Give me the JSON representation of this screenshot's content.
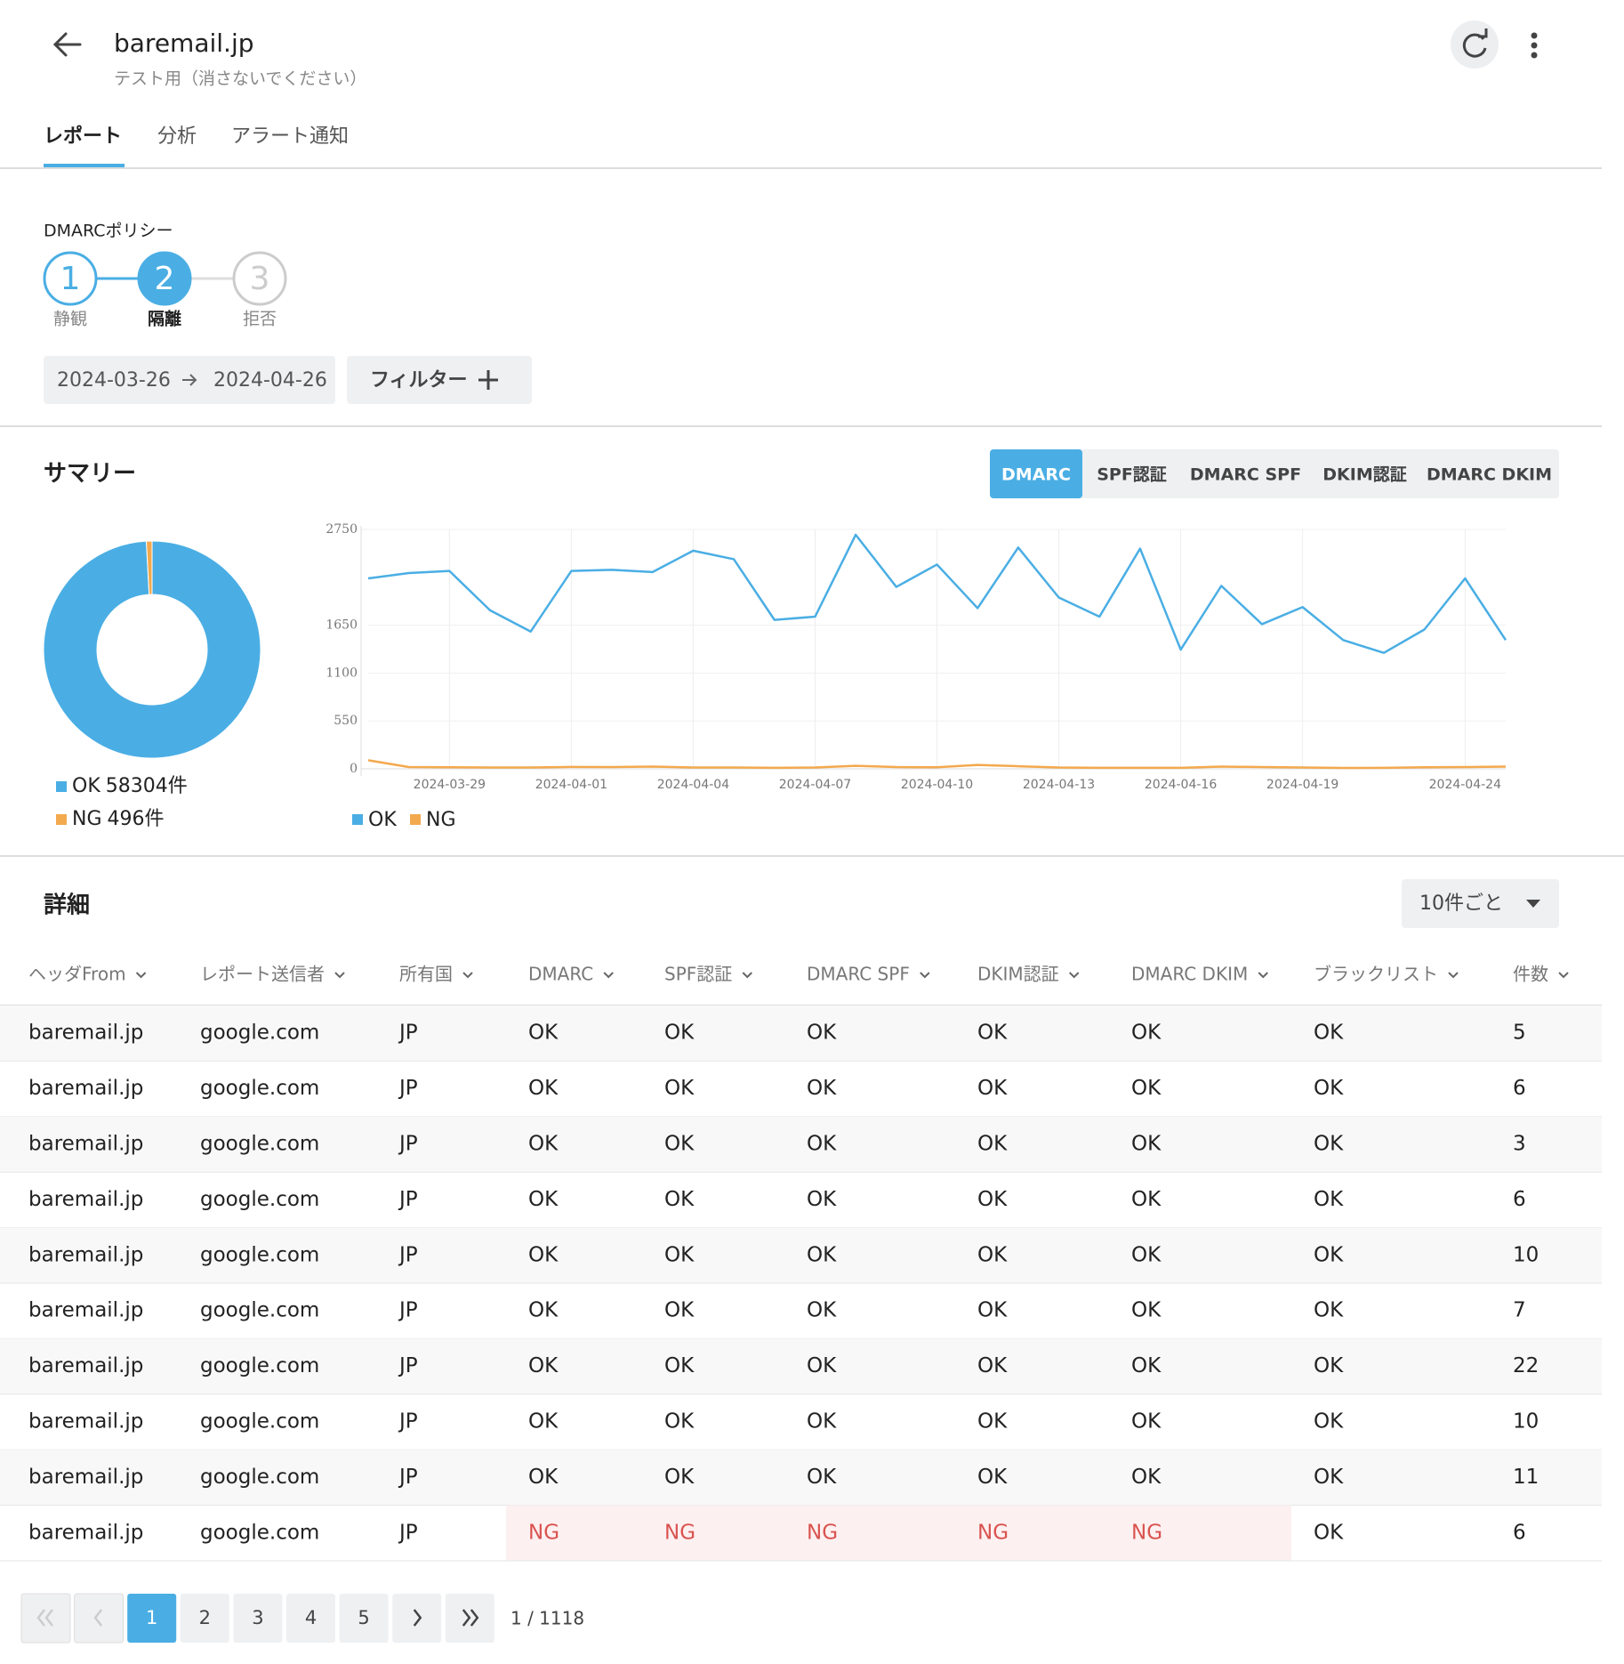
{
  "header": {
    "title": "baremail.jp",
    "subtitle": "テスト用（消さないでください）"
  },
  "tabs": [
    "レポート",
    "分析",
    "アラート通知"
  ],
  "policy": {
    "label": "DMARCポリシー",
    "steps": [
      {
        "number": "1",
        "label": "静観"
      },
      {
        "number": "2",
        "label": "隔離"
      },
      {
        "number": "3",
        "label": "拒否"
      }
    ]
  },
  "date_range": {
    "start": "2024-03-26",
    "end": "2024-04-26"
  },
  "filter_button": "フィルター",
  "summary": {
    "title": "サマリー",
    "metric_tabs": [
      "DMARC",
      "SPF認証",
      "DMARC SPF",
      "DKIM認証",
      "DMARC DKIM"
    ]
  },
  "chart_data": [
    {
      "type": "donut",
      "categories": [
        "OK",
        "NG"
      ],
      "values": [
        58304,
        496
      ],
      "value_labels": [
        "58304件",
        "496件"
      ],
      "colors": [
        "#4aaee4",
        "#f3a94e"
      ],
      "legend": "bottom"
    },
    {
      "type": "line",
      "x": [
        null,
        null,
        "2024-03-29",
        null,
        null,
        "2024-04-01",
        null,
        null,
        "2024-04-04",
        null,
        null,
        "2024-04-07",
        null,
        null,
        "2024-04-10",
        null,
        null,
        "2024-04-13",
        null,
        null,
        "2024-04-16",
        null,
        null,
        "2024-04-19",
        null,
        null,
        null,
        "2024-04-24",
        null
      ],
      "series": [
        {
          "name": "OK",
          "color": "#4aaee4",
          "values": [
            2188,
            2249,
            2273,
            1821,
            1577,
            2273,
            2286,
            2261,
            2506,
            2408,
            1711,
            1748,
            2689,
            2090,
            2347,
            1846,
            2542,
            1968,
            1748,
            2530,
            1369,
            2102,
            1662,
            1858,
            1479,
            1332,
            1601,
            2188,
            1479
          ]
        },
        {
          "name": "NG",
          "color": "#f3a94e",
          "values": [
            98,
            20,
            18,
            15,
            15,
            22,
            20,
            25,
            15,
            15,
            12,
            15,
            35,
            20,
            18,
            45,
            30,
            15,
            12,
            12,
            12,
            25,
            20,
            15,
            10,
            12,
            18,
            20,
            25
          ]
        }
      ],
      "ylim": [
        0,
        2750
      ],
      "yticks": [
        0,
        550,
        1100,
        1650,
        2750
      ],
      "grid": true,
      "legend": "bottom"
    }
  ],
  "details": {
    "title": "詳細",
    "page_size": "10件ごと",
    "table": {
      "columns": [
        "ヘッダFrom",
        "レポート送信者",
        "所有国",
        "DMARC",
        "SPF認証",
        "DMARC SPF",
        "DKIM認証",
        "DMARC DKIM",
        "ブラックリスト",
        "件数"
      ],
      "rows": [
        [
          "baremail.jp",
          "google.com",
          "JP",
          "OK",
          "OK",
          "OK",
          "OK",
          "OK",
          "OK",
          5
        ],
        [
          "baremail.jp",
          "google.com",
          "JP",
          "OK",
          "OK",
          "OK",
          "OK",
          "OK",
          "OK",
          6
        ],
        [
          "baremail.jp",
          "google.com",
          "JP",
          "OK",
          "OK",
          "OK",
          "OK",
          "OK",
          "OK",
          3
        ],
        [
          "baremail.jp",
          "google.com",
          "JP",
          "OK",
          "OK",
          "OK",
          "OK",
          "OK",
          "OK",
          6
        ],
        [
          "baremail.jp",
          "google.com",
          "JP",
          "OK",
          "OK",
          "OK",
          "OK",
          "OK",
          "OK",
          10
        ],
        [
          "baremail.jp",
          "google.com",
          "JP",
          "OK",
          "OK",
          "OK",
          "OK",
          "OK",
          "OK",
          7
        ],
        [
          "baremail.jp",
          "google.com",
          "JP",
          "OK",
          "OK",
          "OK",
          "OK",
          "OK",
          "OK",
          22
        ],
        [
          "baremail.jp",
          "google.com",
          "JP",
          "OK",
          "OK",
          "OK",
          "OK",
          "OK",
          "OK",
          10
        ],
        [
          "baremail.jp",
          "google.com",
          "JP",
          "OK",
          "OK",
          "OK",
          "OK",
          "OK",
          "OK",
          11
        ],
        [
          "baremail.jp",
          "google.com",
          "JP",
          "NG",
          "NG",
          "NG",
          "NG",
          "NG",
          "OK",
          6
        ]
      ]
    }
  },
  "pagination": {
    "pages": [
      1,
      2,
      3,
      4,
      5
    ],
    "status": "1 / 1118"
  }
}
